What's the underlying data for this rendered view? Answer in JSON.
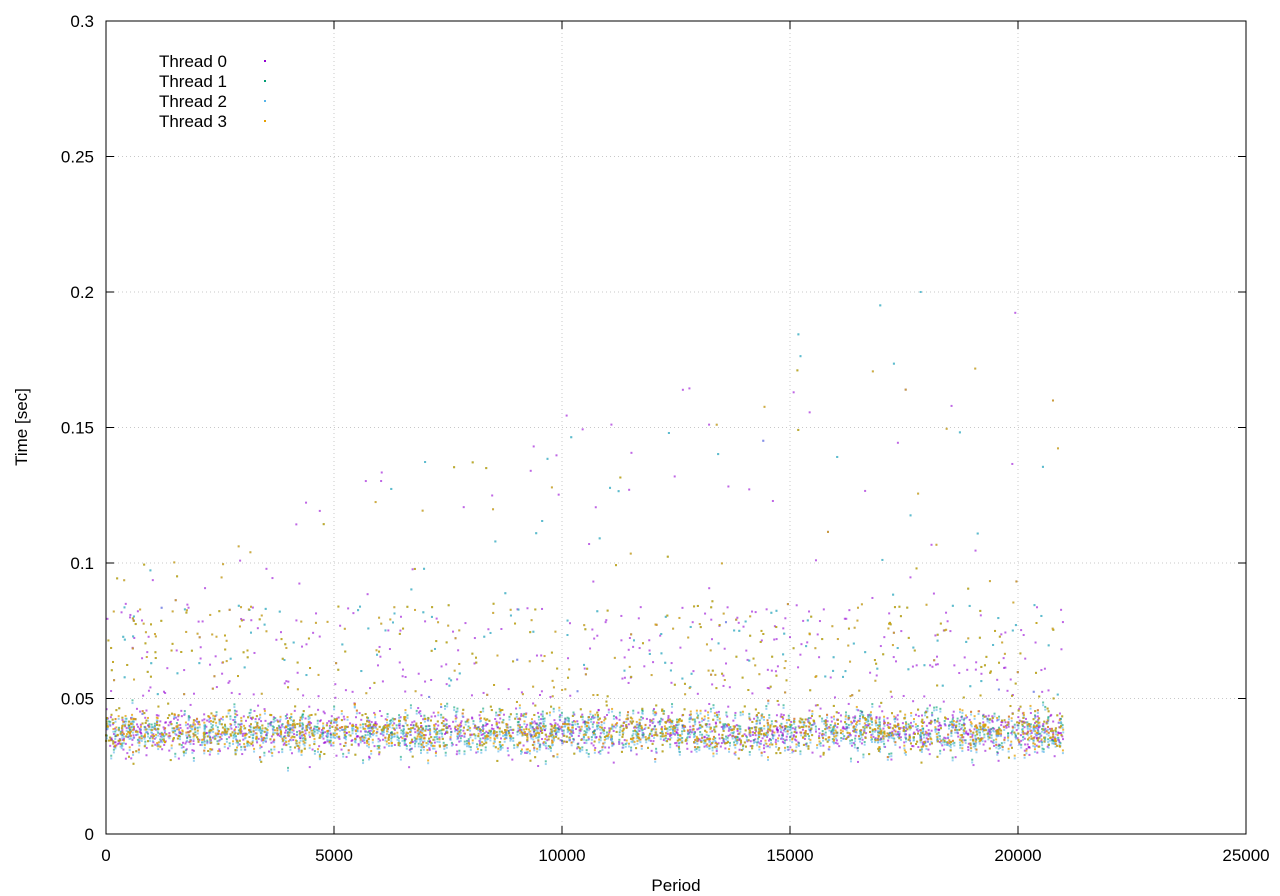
{
  "chart_data": {
    "type": "scatter",
    "title": "",
    "xlabel": "Period",
    "ylabel": "Time [sec]",
    "xlim": [
      0,
      25000
    ],
    "ylim": [
      0,
      0.3
    ],
    "x_ticks": [
      0,
      5000,
      10000,
      15000,
      20000,
      25000
    ],
    "y_ticks": [
      0,
      0.05,
      0.1,
      0.15,
      0.2,
      0.25,
      0.3
    ],
    "x_tick_labels": [
      "0",
      "5000",
      "10000",
      "15000",
      "20000",
      "25000"
    ],
    "y_tick_labels": [
      "0",
      "0.05",
      "0.1",
      "0.15",
      "0.2",
      "0.25",
      "0.3"
    ],
    "grid": true,
    "legend_position": "top-left",
    "series": [
      {
        "name": "Thread 0",
        "color": "#9400d3",
        "x_range": [
          0,
          21000
        ],
        "typical_y": [
          0.025,
          0.05
        ],
        "median_y": 0.038,
        "max_y": 0.233
      },
      {
        "name": "Thread 1",
        "color": "#009e73",
        "x_range": [
          0,
          21000
        ],
        "typical_y": [
          0.025,
          0.05
        ],
        "median_y": 0.038,
        "max_y": 0.228
      },
      {
        "name": "Thread 2",
        "color": "#56b4e9",
        "x_range": [
          0,
          21000
        ],
        "typical_y": [
          0.025,
          0.05
        ],
        "median_y": 0.037,
        "max_y": 0.22
      },
      {
        "name": "Thread 3",
        "color": "#e69f00",
        "x_range": [
          0,
          21000
        ],
        "typical_y": [
          0.025,
          0.05
        ],
        "median_y": 0.038,
        "max_y": 0.222
      }
    ]
  }
}
